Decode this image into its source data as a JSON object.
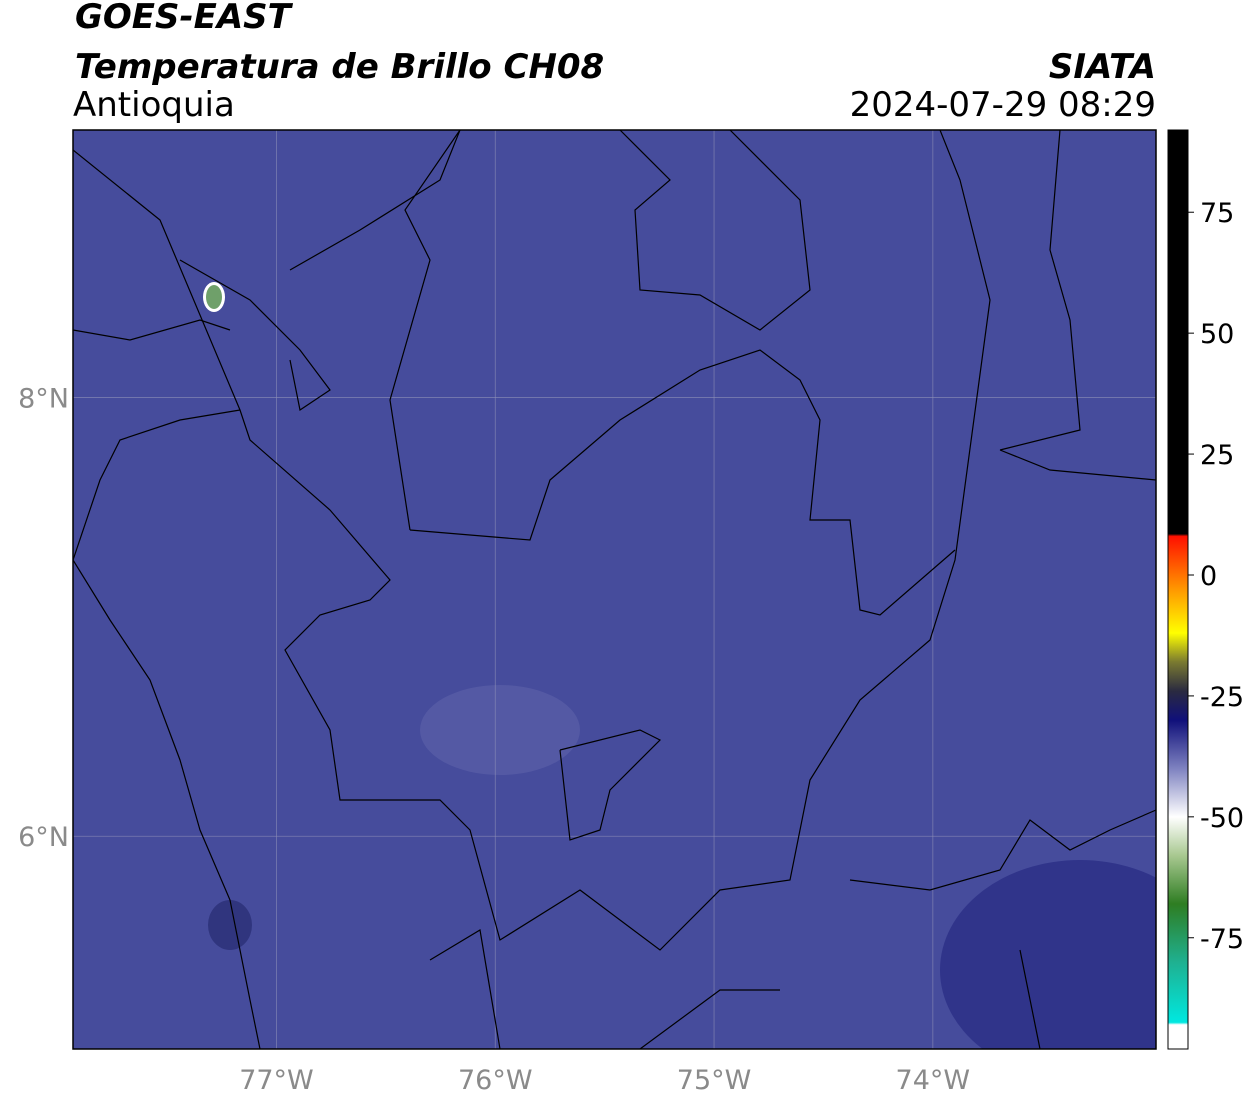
{
  "header": {
    "title": "GOES-EAST",
    "subtitle": "Temperatura de Brillo CH08",
    "region": "Antioquia",
    "source": "SIATA",
    "datetime": "2024-07-29 08:29"
  },
  "map": {
    "xlim": [
      -77.93,
      -72.98
    ],
    "ylim": [
      5.03,
      9.22
    ],
    "xticks": [
      {
        "value": -77,
        "label": "77°W"
      },
      {
        "value": -76,
        "label": "76°W"
      },
      {
        "value": -75,
        "label": "75°W"
      },
      {
        "value": -74,
        "label": "74°W"
      }
    ],
    "yticks": [
      {
        "value": 6,
        "label": "6°N"
      },
      {
        "value": 8,
        "label": "8°N"
      }
    ],
    "grid": true,
    "background": "#464c9c"
  },
  "colorbar": {
    "lim": [
      -98,
      92
    ],
    "ticks": [
      75,
      50,
      25,
      0,
      -25,
      -50,
      -75
    ],
    "stops": [
      {
        "value": -98,
        "color": "#ffffff"
      },
      {
        "value": -93,
        "color": "#ffffff"
      },
      {
        "value": -92.5,
        "color": "#00e8e0"
      },
      {
        "value": -80,
        "color": "#1fb090"
      },
      {
        "value": -68,
        "color": "#2e7d22"
      },
      {
        "value": -58,
        "color": "#a8c890"
      },
      {
        "value": -50,
        "color": "#ffffff"
      },
      {
        "value": -40,
        "color": "#7e82c0"
      },
      {
        "value": -30,
        "color": "#10107a"
      },
      {
        "value": -24,
        "color": "#2a2a40"
      },
      {
        "value": -18,
        "color": "#7a7a30"
      },
      {
        "value": -12,
        "color": "#ffff00"
      },
      {
        "value": -3,
        "color": "#ff9800"
      },
      {
        "value": 8,
        "color": "#ff1000"
      },
      {
        "value": 8.5,
        "color": "#000000"
      },
      {
        "value": 92,
        "color": "#000000"
      }
    ]
  }
}
